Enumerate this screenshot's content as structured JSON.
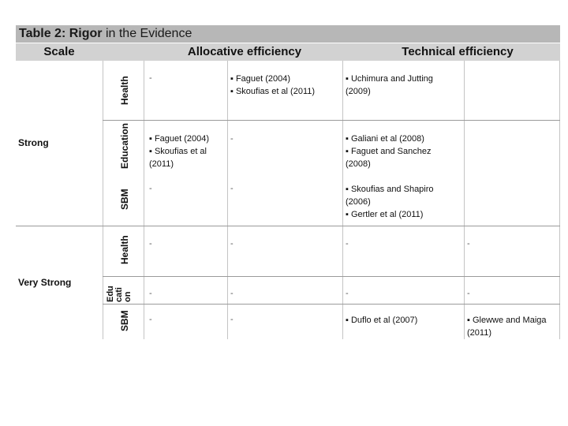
{
  "title": {
    "part1": "Table 2: Rigor",
    "part2": " in the Evidence"
  },
  "headers": {
    "scale": "Scale",
    "allocative": "Allocative efficiency",
    "technical": "Technical efficiency"
  },
  "groups": {
    "strong": {
      "label": "Strong"
    },
    "very_strong": {
      "label": "Very Strong"
    }
  },
  "rows": {
    "strong_health": {
      "label": "Health",
      "c1": "-",
      "c2_line1": "▪ Faguet (2004)",
      "c2_line2": "▪ Skoufias et al (2011)",
      "c3_line1": "▪ Uchimura and Jutting",
      "c3_line2": "(2009)"
    },
    "strong_education": {
      "label": "Education",
      "c1_line1": "▪ Faguet (2004)",
      "c1_line2": "▪ Skoufias et al",
      "c1_line3": "(2011)",
      "c2": "-",
      "c3_line1": "▪ Galiani et al (2008)",
      "c3_line2": "▪ Faguet and Sanchez",
      "c3_line3": "(2008)"
    },
    "strong_sbm": {
      "label": "SBM",
      "c1": "-",
      "c2": "-",
      "c3_line1": "▪ Skoufias and Shapiro",
      "c3_line2": "(2006)",
      "c3_line3": "▪ Gertler et al (2011)"
    },
    "vs_health": {
      "label": "Health",
      "c1": "-",
      "c2": "-",
      "c3": "-",
      "c4": "-"
    },
    "vs_education": {
      "label_l1": "Edu",
      "label_l2": "cati",
      "label_l3": "on",
      "c1": "-",
      "c2": "-",
      "c3": "-",
      "c4": "-"
    },
    "vs_sbm": {
      "label": "SBM",
      "c1": "-",
      "c2": "-",
      "c3": "▪ Duflo et al (2007)",
      "c4_line1": "▪ Glewwe and Maiga",
      "c4_line2": "(2011)"
    }
  }
}
